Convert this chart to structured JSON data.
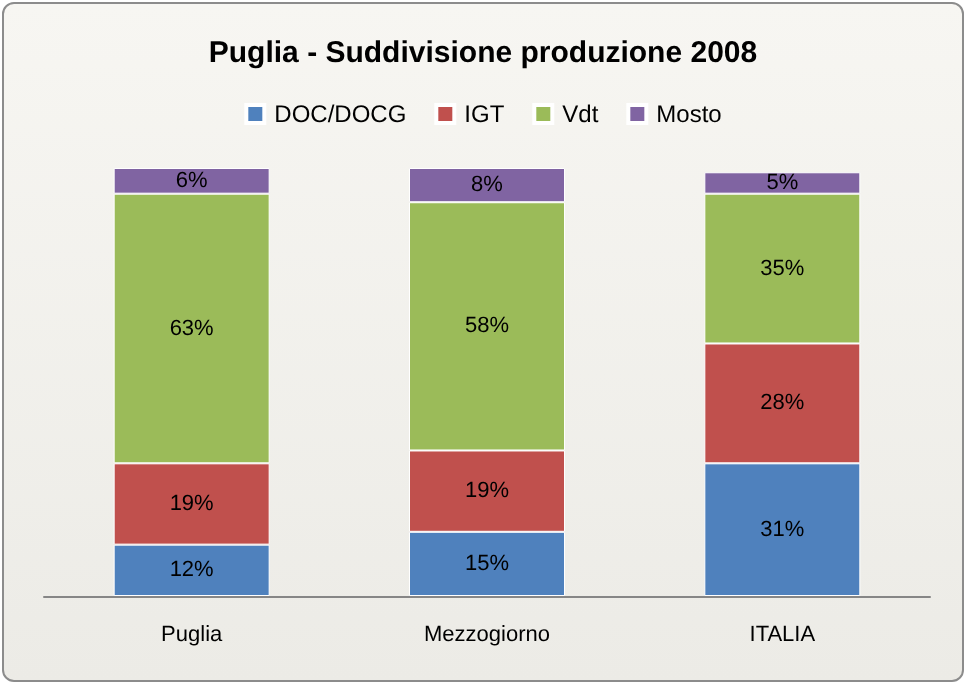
{
  "chart_data": {
    "type": "bar",
    "title": "Puglia - Suddivisione produzione 2008",
    "categories": [
      "Puglia",
      "Mezzogiorno",
      "ITALIA"
    ],
    "stacked": true,
    "ylim": [
      0,
      100
    ],
    "tick_labels": "x",
    "legend": "top",
    "grid": false,
    "series": [
      {
        "name": "DOC/DOCG",
        "color": "#4f81bd",
        "values": [
          12,
          15,
          31
        ],
        "value_labels": [
          "12%",
          "15%",
          "31%"
        ]
      },
      {
        "name": "IGT",
        "color": "#c0504d",
        "values": [
          19,
          19,
          28
        ],
        "value_labels": [
          "19%",
          "19%",
          "28%"
        ]
      },
      {
        "name": "Vdt",
        "color": "#9bbb59",
        "values": [
          63,
          58,
          35
        ],
        "value_labels": [
          "63%",
          "58%",
          "35%"
        ]
      },
      {
        "name": "Mosto",
        "color": "#8064a2",
        "values": [
          6,
          8,
          5
        ],
        "value_labels": [
          "6%",
          "8%",
          "5%"
        ]
      }
    ]
  }
}
